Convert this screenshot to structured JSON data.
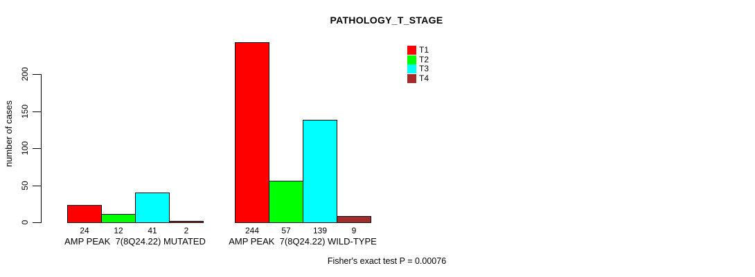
{
  "chart_data": {
    "type": "bar",
    "title": "PATHOLOGY_T_STAGE",
    "ylabel": "number of cases",
    "xlabel": "",
    "annotation": "Fisher's exact test P = 0.00076",
    "categories": [
      "AMP PEAK  7(8Q24.22) MUTATED",
      "AMP PEAK  7(8Q24.22) WILD-TYPE"
    ],
    "series": [
      {
        "name": "T1",
        "color": "#ff0000",
        "values": [
          24,
          244
        ]
      },
      {
        "name": "T2",
        "color": "#00ff00",
        "values": [
          12,
          57
        ]
      },
      {
        "name": "T3",
        "color": "#00ffff",
        "values": [
          41,
          139
        ]
      },
      {
        "name": "T4",
        "color": "#a52a2a",
        "values": [
          2,
          9
        ]
      }
    ],
    "yticks": [
      0,
      50,
      100,
      150,
      200
    ],
    "ylim": [
      0,
      250
    ],
    "bar_value_labels_shown": true,
    "legend_position": "top-right",
    "grid": false,
    "axis_color": "#000000",
    "bar_border_color": "#000000",
    "background_color": "#ffffff"
  }
}
